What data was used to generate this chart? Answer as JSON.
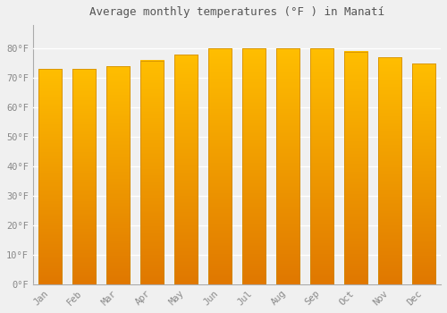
{
  "months": [
    "Jan",
    "Feb",
    "Mar",
    "Apr",
    "May",
    "Jun",
    "Jul",
    "Aug",
    "Sep",
    "Oct",
    "Nov",
    "Dec"
  ],
  "values": [
    73,
    73,
    74,
    76,
    78,
    80,
    80,
    80,
    80,
    79,
    77,
    75
  ],
  "title": "Average monthly temperatures (°F ) in Manatí",
  "ylim": [
    0,
    88
  ],
  "yticks": [
    0,
    10,
    20,
    30,
    40,
    50,
    60,
    70,
    80
  ],
  "ytick_labels": [
    "0°F",
    "10°F",
    "20°F",
    "30°F",
    "40°F",
    "50°F",
    "60°F",
    "70°F",
    "80°F"
  ],
  "bar_color_top": "#FFBE00",
  "bar_color_bottom": "#E07800",
  "bar_edge_color": "#CC8800",
  "background_color": "#f0f0f0",
  "grid_color": "#ffffff",
  "title_fontsize": 9,
  "tick_fontsize": 7.5,
  "bar_width": 0.7
}
